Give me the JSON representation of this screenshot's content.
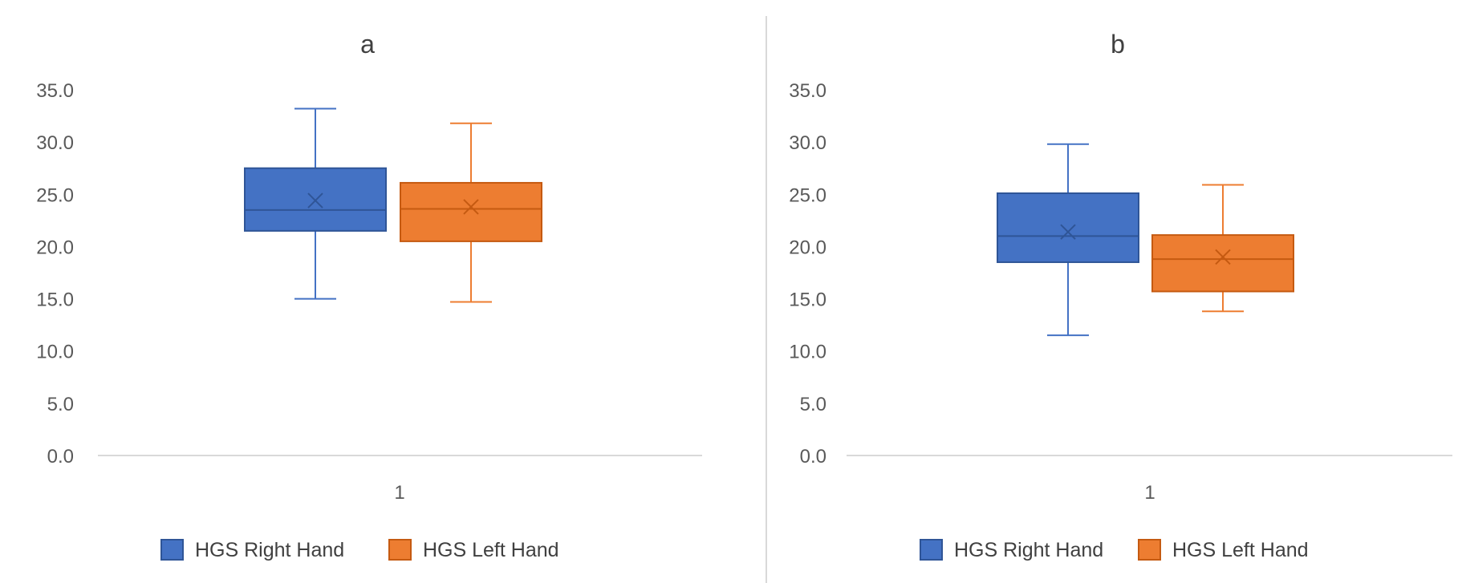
{
  "colors": {
    "background": "#ffffff",
    "axis": "#d9d9d9",
    "divider": "#d9d9d9",
    "tick_text": "#595959",
    "title_text": "#404040",
    "legend_text": "#404040"
  },
  "chart_data": [
    {
      "type": "box",
      "title": "a",
      "xlabel": "",
      "ylabel": "",
      "categories": [
        "1"
      ],
      "ylim": [
        0,
        35
      ],
      "ytick_step": 5,
      "ytick_labels": [
        "0.0",
        "5.0",
        "10.0",
        "15.0",
        "20.0",
        "25.0",
        "30.0",
        "35.0"
      ],
      "grid": false,
      "legend_position": "bottom",
      "series": [
        {
          "name": "HGS Right Hand",
          "color": "#4472c4",
          "fill": "#4472c4",
          "stroke": "#2f5597",
          "min": 15.0,
          "q1": 21.5,
          "median": 23.5,
          "mean": 24.4,
          "q3": 27.5,
          "max": 33.2
        },
        {
          "name": "HGS Left Hand",
          "color": "#ed7d31",
          "fill": "#ed7d31",
          "stroke": "#c55a11",
          "min": 14.7,
          "q1": 20.5,
          "median": 23.6,
          "mean": 23.8,
          "q3": 26.1,
          "max": 31.8
        }
      ]
    },
    {
      "type": "box",
      "title": "b",
      "xlabel": "",
      "ylabel": "",
      "categories": [
        "1"
      ],
      "ylim": [
        0,
        35
      ],
      "ytick_step": 5,
      "ytick_labels": [
        "0.0",
        "5.0",
        "10.0",
        "15.0",
        "20.0",
        "25.0",
        "30.0",
        "35.0"
      ],
      "grid": false,
      "legend_position": "bottom",
      "series": [
        {
          "name": "HGS Right Hand",
          "color": "#4472c4",
          "fill": "#4472c4",
          "stroke": "#2f5597",
          "min": 11.5,
          "q1": 18.5,
          "median": 21.0,
          "mean": 21.4,
          "q3": 25.1,
          "max": 29.8
        },
        {
          "name": "HGS Left Hand",
          "color": "#ed7d31",
          "fill": "#ed7d31",
          "stroke": "#c55a11",
          "min": 13.8,
          "q1": 15.7,
          "median": 18.8,
          "mean": 19.0,
          "q3": 21.1,
          "max": 25.9
        }
      ]
    }
  ]
}
